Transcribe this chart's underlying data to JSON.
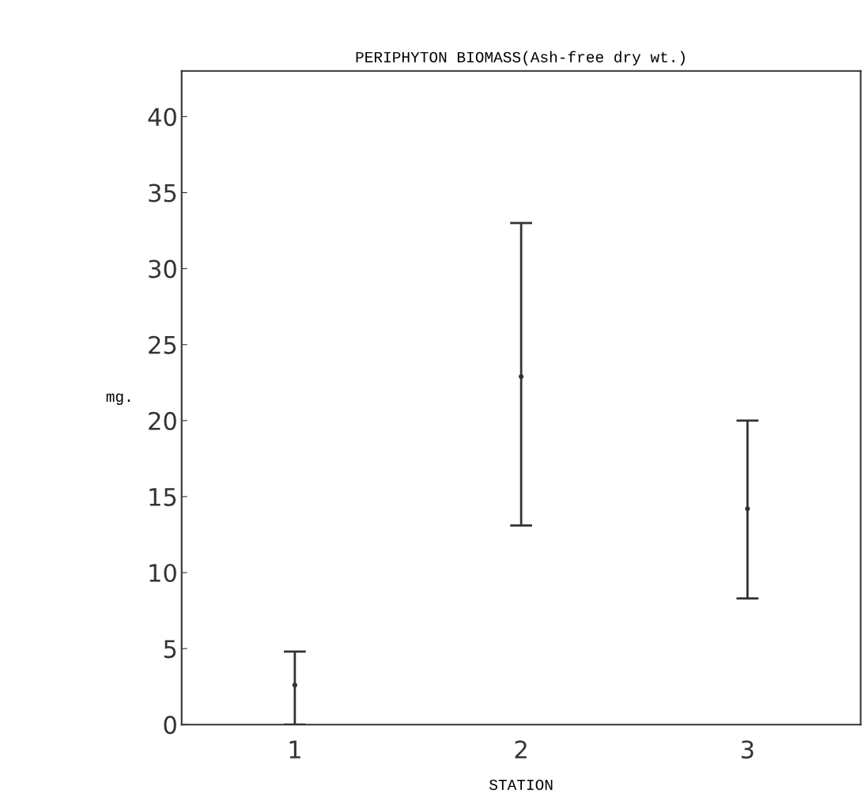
{
  "chart_data": {
    "type": "scatter",
    "title": "PERIPHYTON BIOMASS(Ash-free dry wt.)",
    "xlabel": "STATION",
    "ylabel": "mg.",
    "x": [
      1,
      2,
      3
    ],
    "series": [
      {
        "color": "#333333",
        "values": [
          2.6,
          22.9,
          14.2
        ],
        "errors": [
          [
            0,
            4.8
          ],
          [
            13.1,
            33.0
          ],
          [
            8.3,
            20.0
          ]
        ]
      }
    ],
    "xlim": [
      0.5,
      3.5
    ],
    "ylim": [
      0,
      43
    ],
    "xticks": [
      1,
      2,
      3
    ],
    "yticks": [
      0,
      5,
      10,
      15,
      20,
      25,
      30,
      35,
      40
    ],
    "marker": "circle",
    "grid": false,
    "legend": false
  }
}
